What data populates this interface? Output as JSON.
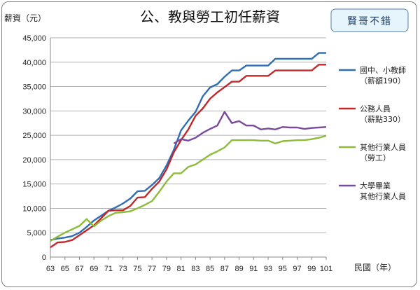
{
  "chart_data": {
    "type": "line",
    "title": "公、教與勞工初任薪資",
    "badge": "賢哥不錯",
    "ylabel": "薪資（元）",
    "xlabel": "民國（年）",
    "ylim": [
      0,
      45000
    ],
    "yticks": [
      0,
      5000,
      10000,
      15000,
      20000,
      25000,
      30000,
      35000,
      40000,
      45000
    ],
    "ytick_labels": [
      "0",
      "5,000",
      "10,000",
      "15,000",
      "20,000",
      "25,000",
      "30,000",
      "35,000",
      "40,000",
      "45,000"
    ],
    "xlim": [
      63,
      101
    ],
    "xticks": [
      63,
      65,
      67,
      69,
      71,
      73,
      75,
      77,
      79,
      81,
      83,
      85,
      87,
      89,
      91,
      93,
      95,
      97,
      99,
      101
    ],
    "grid": "horizontal",
    "legend_position": "right",
    "series": [
      {
        "name_lines": [
          "國中、小教師",
          "（薪額190）"
        ],
        "color": "#2e6eb5",
        "x": [
          63,
          64,
          65,
          66,
          67,
          68,
          69,
          70,
          71,
          72,
          73,
          74,
          75,
          76,
          77,
          78,
          79,
          80,
          81,
          82,
          83,
          84,
          85,
          86,
          87,
          88,
          89,
          90,
          91,
          92,
          93,
          94,
          95,
          96,
          97,
          98,
          99,
          100,
          101
        ],
        "values": [
          3500,
          3800,
          4000,
          4300,
          5000,
          6200,
          7500,
          8500,
          9500,
          10200,
          11000,
          12000,
          13500,
          13600,
          14800,
          16200,
          18800,
          22000,
          26000,
          28000,
          29800,
          33000,
          34800,
          35500,
          37000,
          38300,
          38300,
          39300,
          39300,
          39300,
          39300,
          40700,
          40700,
          40700,
          40700,
          40700,
          40700,
          41900,
          41900
        ]
      },
      {
        "name_lines": [
          "公務人員",
          "（薪點330）"
        ],
        "color": "#c0282c",
        "x": [
          63,
          64,
          65,
          66,
          67,
          68,
          69,
          70,
          71,
          72,
          73,
          74,
          75,
          76,
          77,
          78,
          79,
          80,
          81,
          82,
          83,
          84,
          85,
          86,
          87,
          88,
          89,
          90,
          91,
          92,
          93,
          94,
          95,
          96,
          97,
          98,
          99,
          100,
          101
        ],
        "values": [
          2000,
          3000,
          3100,
          3500,
          4500,
          5500,
          6500,
          8000,
          9500,
          9600,
          9600,
          10500,
          12200,
          12300,
          14000,
          15500,
          18000,
          21500,
          24000,
          26200,
          29000,
          30500,
          32500,
          33800,
          34900,
          36000,
          36000,
          37200,
          37200,
          37200,
          37200,
          38300,
          38300,
          38300,
          38300,
          38300,
          38300,
          39500,
          39500
        ]
      },
      {
        "name_lines": [
          "其他行業人員",
          "（勞工）"
        ],
        "color": "#8dbb3c",
        "x": [
          63,
          64,
          65,
          66,
          67,
          68,
          69,
          70,
          71,
          72,
          73,
          74,
          75,
          76,
          77,
          78,
          79,
          80,
          81,
          82,
          83,
          84,
          85,
          86,
          87,
          88,
          89,
          90,
          91,
          92,
          93,
          94,
          95,
          96,
          97,
          98,
          99,
          100,
          101
        ],
        "values": [
          3300,
          4200,
          5000,
          5700,
          6400,
          7800,
          6300,
          7500,
          8400,
          9100,
          9200,
          9400,
          10000,
          10700,
          11500,
          13400,
          15500,
          17200,
          17200,
          18500,
          19000,
          20000,
          21000,
          21700,
          22500,
          24000,
          24000,
          24000,
          24000,
          23900,
          23900,
          23300,
          23800,
          23900,
          24000,
          24000,
          24200,
          24500,
          24900
        ]
      },
      {
        "name_lines": [
          "大學畢業",
          "其他行業人員"
        ],
        "color": "#7a4b9c",
        "x": [
          80,
          81,
          82,
          83,
          84,
          85,
          86,
          87,
          88,
          89,
          90,
          91,
          92,
          93,
          94,
          95,
          96,
          97,
          98,
          99,
          100,
          101
        ],
        "values": [
          23300,
          24200,
          23900,
          24500,
          25500,
          26300,
          27000,
          29800,
          27500,
          27900,
          27000,
          27000,
          26200,
          26400,
          26200,
          26700,
          26600,
          26600,
          26300,
          26500,
          26600,
          26700
        ]
      }
    ]
  }
}
